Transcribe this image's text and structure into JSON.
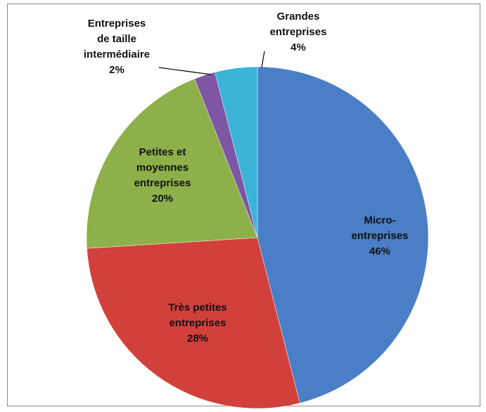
{
  "chart_data": {
    "type": "pie",
    "categories": [
      [
        "Micro-",
        "entreprises"
      ],
      [
        "Très petites",
        "entreprises"
      ],
      [
        "Petites et",
        "moyennes",
        "entreprises"
      ],
      [
        "Entreprises",
        "de taille",
        "intermédiaire"
      ],
      [
        "Grandes",
        "entreprises"
      ]
    ],
    "values": [
      46,
      28,
      20,
      2,
      4
    ],
    "value_labels": [
      "46%",
      "28%",
      "20%",
      "2%",
      "4%"
    ],
    "colors": [
      "#4a7ec6",
      "#d2403c",
      "#8db04a",
      "#7d57a3",
      "#3cb4d8"
    ]
  }
}
